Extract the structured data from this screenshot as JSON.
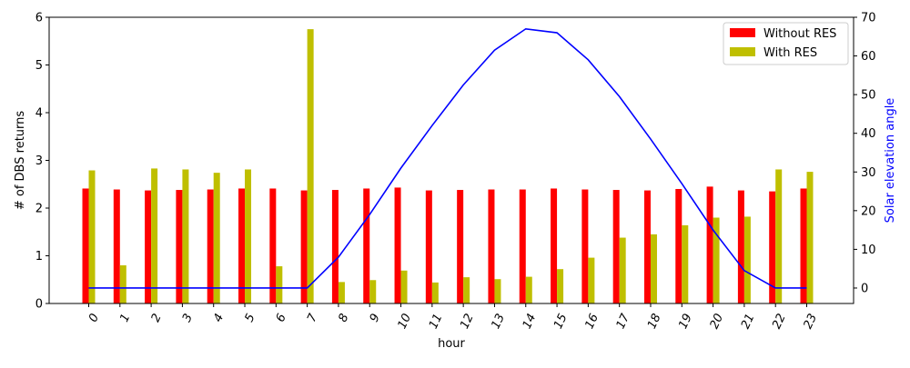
{
  "chart_data": {
    "type": "bar",
    "xlabel": "hour",
    "ylabel_left": "# of DBS returns",
    "ylabel_right": "Solar elevation angle",
    "ylim_left": [
      0,
      6
    ],
    "ylim_right": [
      -4,
      70
    ],
    "yticks_left": [
      0,
      1,
      2,
      3,
      4,
      5,
      6
    ],
    "yticks_right": [
      0,
      10,
      20,
      30,
      40,
      50,
      60,
      70
    ],
    "categories": [
      "0",
      "1",
      "2",
      "3",
      "4",
      "5",
      "6",
      "7",
      "8",
      "9",
      "10",
      "11",
      "12",
      "13",
      "14",
      "15",
      "16",
      "17",
      "18",
      "19",
      "20",
      "21",
      "22",
      "23"
    ],
    "series": [
      {
        "name": "Without RES",
        "color": "#ff0000",
        "axis": "left",
        "values": [
          2.41,
          2.39,
          2.37,
          2.38,
          2.39,
          2.41,
          2.41,
          2.37,
          2.38,
          2.41,
          2.43,
          2.37,
          2.38,
          2.39,
          2.39,
          2.41,
          2.39,
          2.38,
          2.37,
          2.4,
          2.45,
          2.37,
          2.35,
          2.41
        ]
      },
      {
        "name": "With RES",
        "color": "#bfbf00",
        "axis": "left",
        "values": [
          2.79,
          0.8,
          2.83,
          2.81,
          2.74,
          2.81,
          0.78,
          5.75,
          0.45,
          0.49,
          0.69,
          0.44,
          0.55,
          0.51,
          0.56,
          0.72,
          0.96,
          1.38,
          1.45,
          1.64,
          1.8,
          1.82,
          2.81,
          2.76
        ]
      }
    ],
    "line": {
      "color": "#0000ff",
      "axis": "right",
      "values": [
        0,
        0,
        0,
        0,
        0,
        0,
        0,
        0,
        8,
        19,
        31,
        42,
        52.5,
        61.5,
        67,
        66,
        59,
        49.5,
        38.5,
        27,
        15,
        4.5,
        0,
        0
      ]
    },
    "legend_position": "top-right",
    "grid": false
  }
}
